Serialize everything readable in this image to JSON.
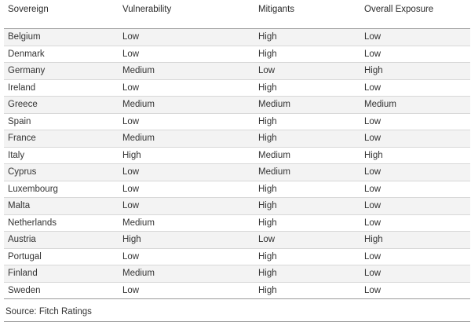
{
  "table": {
    "headers": [
      "Sovereign",
      "Vulnerability",
      "Mitigants",
      "Overall Exposure"
    ],
    "rows": [
      [
        "Belgium",
        "Low",
        "High",
        "Low"
      ],
      [
        "Denmark",
        "Low",
        "High",
        "Low"
      ],
      [
        "Germany",
        "Medium",
        "Low",
        "High"
      ],
      [
        "Ireland",
        "Low",
        "High",
        "Low"
      ],
      [
        "Greece",
        "Medium",
        "Medium",
        "Medium"
      ],
      [
        "Spain",
        "Low",
        "High",
        "Low"
      ],
      [
        "France",
        "Medium",
        "High",
        "Low"
      ],
      [
        "Italy",
        "High",
        "Medium",
        "High"
      ],
      [
        "Cyprus",
        "Low",
        "Medium",
        "Low"
      ],
      [
        "Luxembourg",
        "Low",
        "High",
        "Low"
      ],
      [
        "Malta",
        "Low",
        "High",
        "Low"
      ],
      [
        "Netherlands",
        "Medium",
        "High",
        "Low"
      ],
      [
        "Austria",
        "High",
        "Low",
        "High"
      ],
      [
        "Portugal",
        "Low",
        "High",
        "Low"
      ],
      [
        "Finland",
        "Medium",
        "High",
        "Low"
      ],
      [
        "Sweden",
        "Low",
        "High",
        "Low"
      ]
    ]
  },
  "source": "Source: Fitch Ratings"
}
